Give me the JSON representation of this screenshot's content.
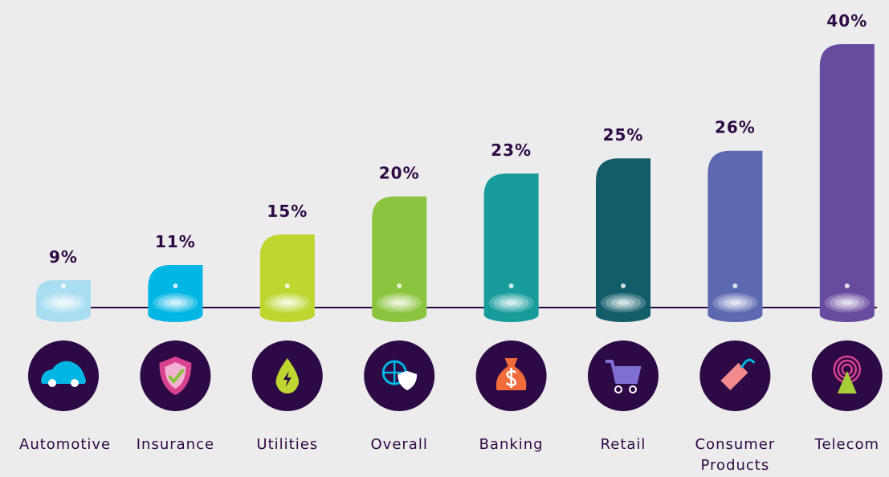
{
  "chart_data": {
    "type": "bar",
    "categories": [
      "Automotive",
      "Insurance",
      "Utilities",
      "Overall",
      "Banking",
      "Retail",
      "Consumer Products",
      "Telecom"
    ],
    "values": [
      9,
      11,
      15,
      20,
      23,
      25,
      26,
      40
    ],
    "value_labels": [
      "9%",
      "11%",
      "15%",
      "20%",
      "23%",
      "25%",
      "26%",
      "40%"
    ],
    "colors": [
      "#a9ddf2",
      "#00b6e4",
      "#bed62f",
      "#8bc43f",
      "#179b9b",
      "#135c6a",
      "#5c68b0",
      "#674b9f"
    ]
  }
}
